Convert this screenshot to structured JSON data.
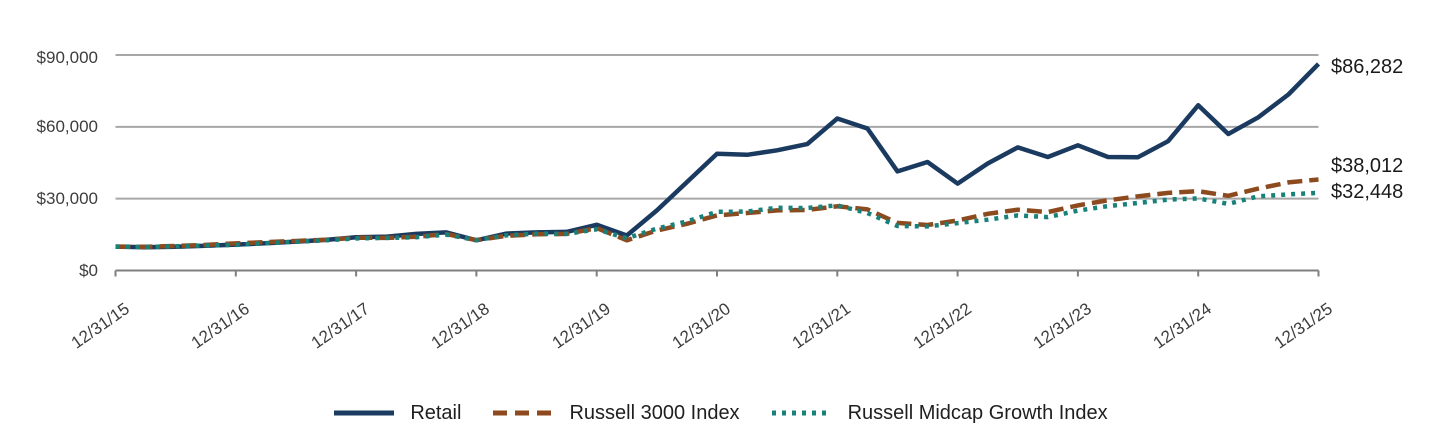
{
  "chart_data": {
    "type": "line",
    "title": "",
    "xlabel": "",
    "ylabel": "",
    "ylim": [
      0,
      90000
    ],
    "grid": "horizontal",
    "legend_position": "bottom",
    "y_tick_labels": [
      "$90,000",
      "$60,000",
      "$30,000",
      "$0"
    ],
    "x_tick_labels": [
      "12/31/15",
      "12/31/16",
      "12/31/17",
      "12/31/18",
      "12/31/19",
      "12/31/20",
      "12/31/21",
      "12/31/22",
      "12/31/23",
      "12/31/24",
      "12/31/25"
    ],
    "points_per_year": 4,
    "axis_color": "#7f7f7f",
    "grid_color": "#a7a7a7",
    "series": [
      {
        "name": "Retail",
        "color": "#1b3a5f",
        "style": "solid",
        "end_label": "$86,282",
        "final_value": 86282,
        "values": [
          10000,
          9700,
          9950,
          10300,
          10800,
          11400,
          12050,
          12800,
          13900,
          14100,
          15300,
          15900,
          12600,
          15400,
          15900,
          16100,
          19100,
          14600,
          25100,
          36900,
          48800,
          48300,
          50200,
          52800,
          63500,
          59300,
          41400,
          45300,
          36300,
          44700,
          51400,
          47400,
          52300,
          47400,
          47300,
          54000,
          69000,
          57000,
          64000,
          73500,
          86282
        ]
      },
      {
        "name": "Russell 3000 Index",
        "color": "#8c4a1e",
        "style": "dashed",
        "end_label": "$38,012",
        "final_value": 38012,
        "values": [
          10000,
          9900,
          10250,
          10700,
          11300,
          11850,
          12300,
          12850,
          13700,
          13600,
          14100,
          15200,
          12700,
          14500,
          15100,
          15300,
          17700,
          12600,
          16700,
          19500,
          23000,
          24000,
          25100,
          25300,
          26800,
          25500,
          19900,
          19000,
          20900,
          23700,
          25400,
          24400,
          27200,
          29300,
          31000,
          32400,
          33100,
          31200,
          34200,
          36800,
          38012
        ]
      },
      {
        "name": "Russell Midcap Growth Index",
        "color": "#18817a",
        "style": "dotted",
        "end_label": "$32,448",
        "final_value": 32448,
        "values": [
          10000,
          9800,
          10100,
          10500,
          10700,
          11400,
          12000,
          12600,
          13400,
          13600,
          13900,
          15000,
          12700,
          14700,
          15400,
          15300,
          17200,
          13500,
          17500,
          20500,
          24500,
          24600,
          26200,
          26100,
          27200,
          24000,
          18600,
          18400,
          19800,
          21200,
          23000,
          22300,
          25000,
          26900,
          28200,
          29600,
          30100,
          27800,
          31000,
          31800,
          32448
        ]
      }
    ]
  }
}
